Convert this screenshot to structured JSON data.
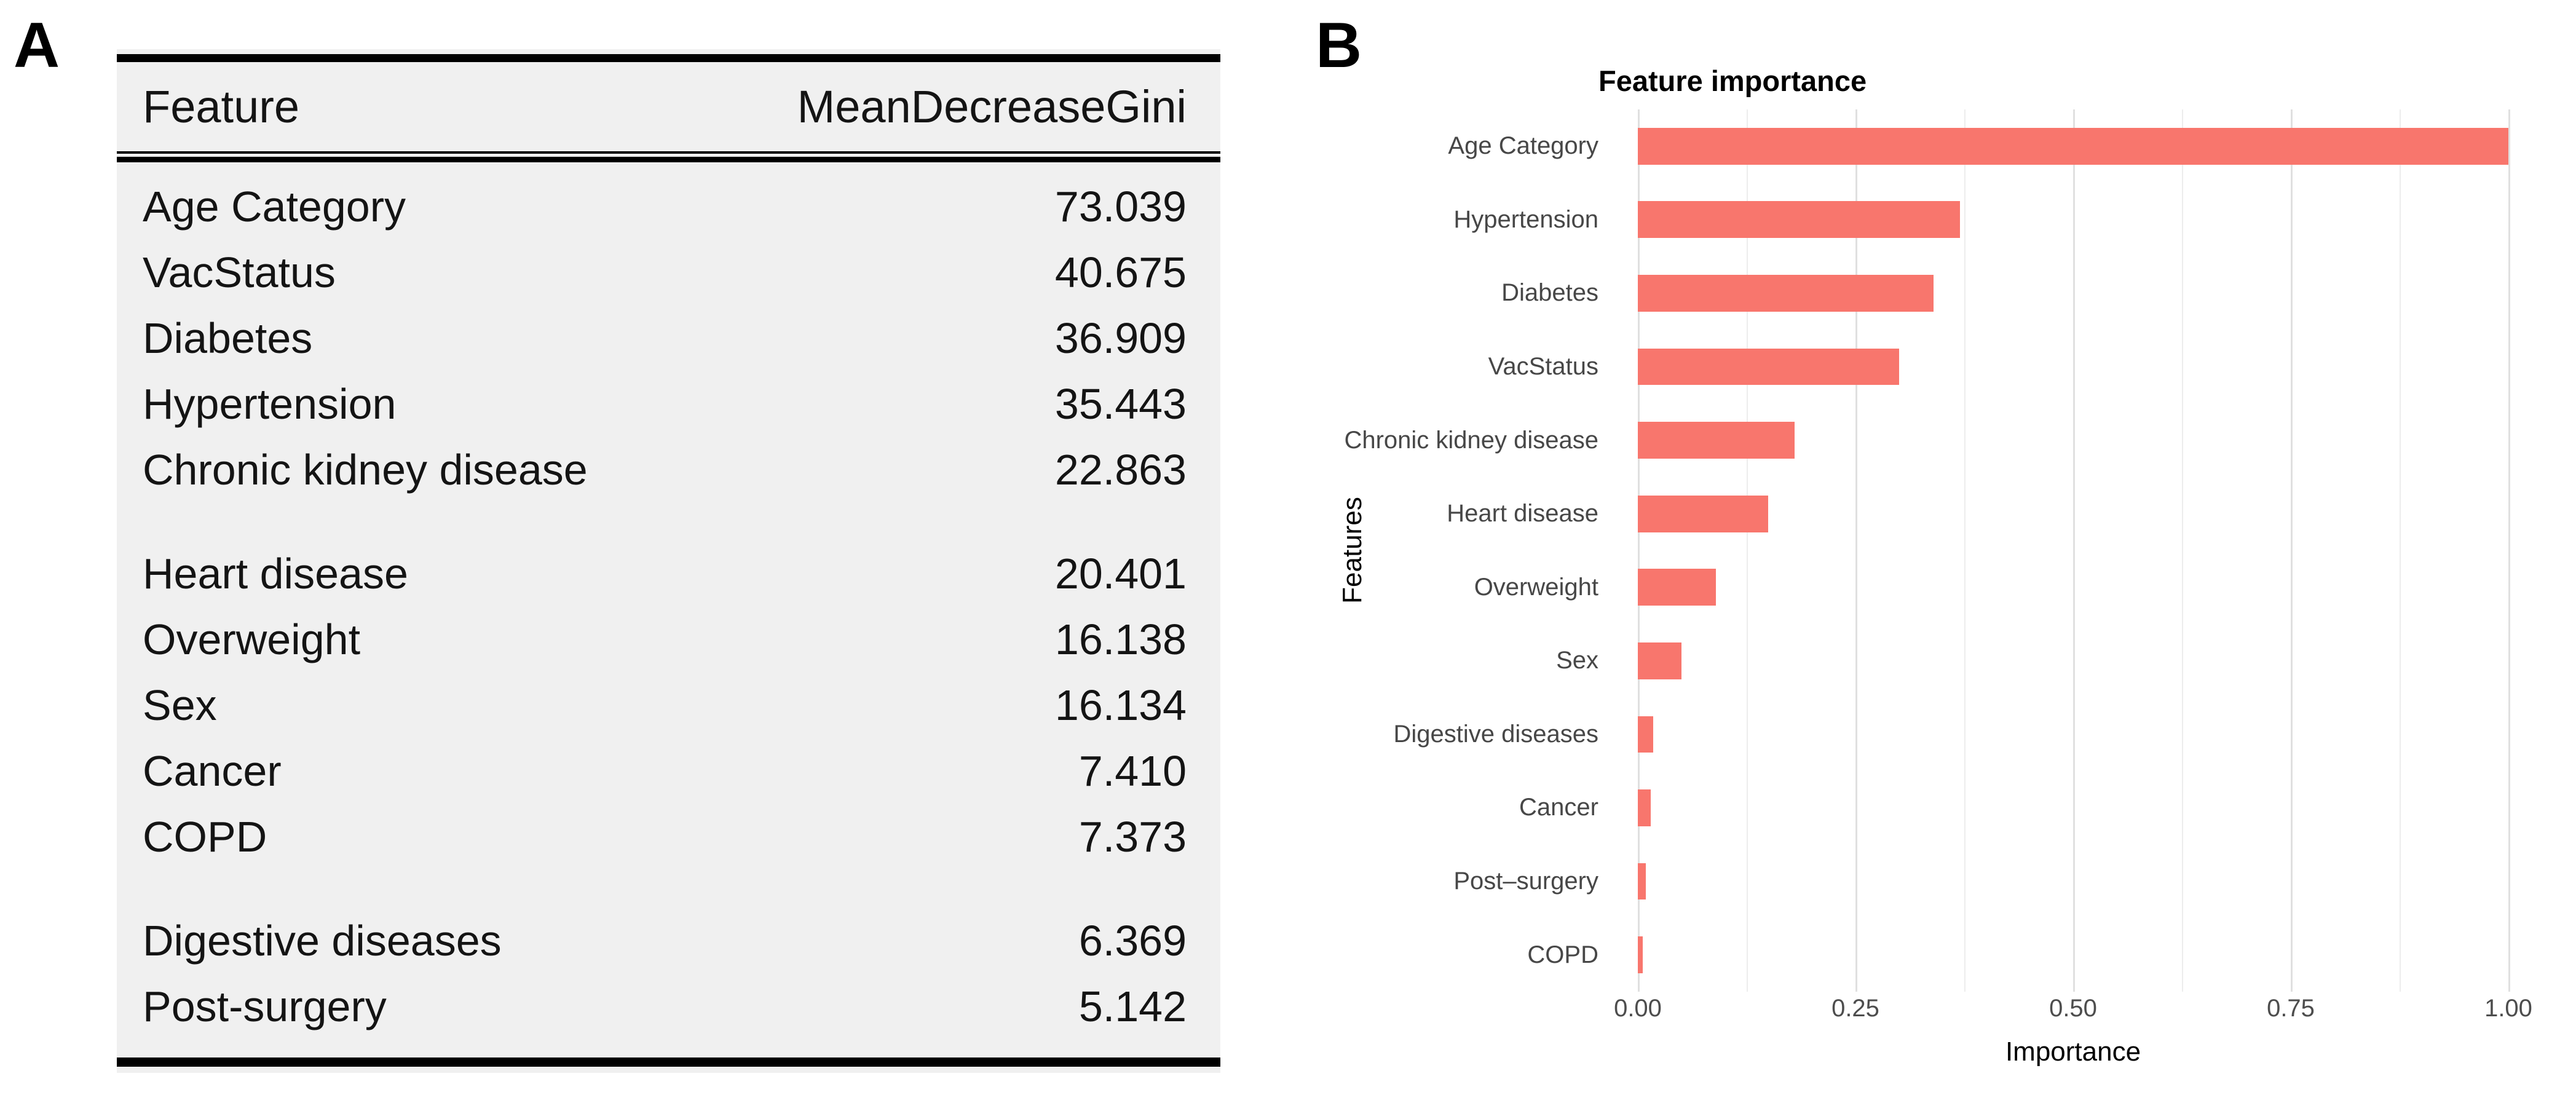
{
  "panels": {
    "a_label": "A",
    "b_label": "B"
  },
  "table": {
    "header": {
      "feature": "Feature",
      "value": "MeanDecreaseGini"
    },
    "groups": [
      [
        {
          "feature": "Age Category",
          "value": "73.039"
        },
        {
          "feature": "VacStatus",
          "value": "40.675"
        },
        {
          "feature": "Diabetes",
          "value": "36.909"
        },
        {
          "feature": "Hypertension",
          "value": "35.443"
        },
        {
          "feature": "Chronic kidney disease",
          "value": "22.863"
        }
      ],
      [
        {
          "feature": "Heart disease",
          "value": "20.401"
        },
        {
          "feature": "Overweight",
          "value": "16.138"
        },
        {
          "feature": "Sex",
          "value": "16.134"
        },
        {
          "feature": "Cancer",
          "value": "7.410"
        },
        {
          "feature": "COPD",
          "value": "7.373"
        }
      ],
      [
        {
          "feature": "Digestive diseases",
          "value": "6.369"
        },
        {
          "feature": "Post-surgery",
          "value": "5.142"
        }
      ]
    ]
  },
  "chart_data": {
    "type": "bar",
    "orientation": "horizontal",
    "title": "Feature importance",
    "xlabel": "Importance",
    "ylabel": "Features",
    "categories": [
      "Age Category",
      "Hypertension",
      "Diabetes",
      "VacStatus",
      "Chronic kidney disease",
      "Heart disease",
      "Overweight",
      "Sex",
      "Digestive diseases",
      "Cancer",
      "Post–surgery",
      "COPD"
    ],
    "values": [
      1.0,
      0.37,
      0.34,
      0.3,
      0.18,
      0.15,
      0.09,
      0.05,
      0.018,
      0.015,
      0.009,
      0.006
    ],
    "xlim": [
      0,
      1
    ],
    "xticks": [
      0,
      0.25,
      0.5,
      0.75,
      1
    ],
    "xtick_labels": [
      "0.00",
      "0.25",
      "0.50",
      "0.75",
      "1.00"
    ],
    "xticks_minor": [
      0.125,
      0.375,
      0.625,
      0.875
    ],
    "bar_color": "#F8766D",
    "grid": "vertical major+minor, light gray, no panel border",
    "legend": "none"
  },
  "colors": {
    "bar": "#F8766D",
    "table_background": "#f0f0f0",
    "grid_major": "#e0e0e0",
    "grid_minor": "#ededed",
    "tick_label": "#4d4d4d",
    "category_label": "#474747"
  }
}
